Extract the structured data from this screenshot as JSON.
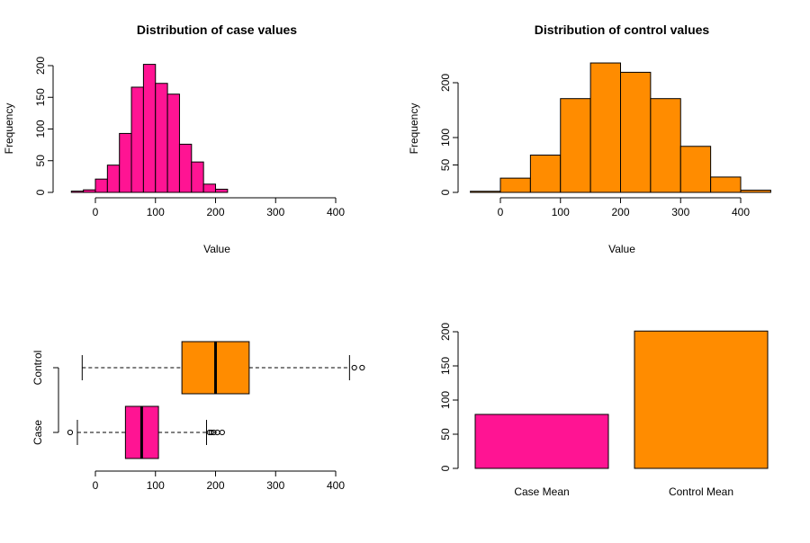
{
  "chart_data": [
    {
      "type": "bar",
      "subtype": "histogram",
      "title": "Distribution of case values",
      "xlabel": "Value",
      "ylabel": "Frequency",
      "bin_edges": [
        -40,
        -20,
        0,
        20,
        40,
        60,
        80,
        100,
        120,
        140,
        160,
        180,
        200,
        220
      ],
      "values": [
        2,
        4,
        21,
        43,
        93,
        166,
        202,
        172,
        155,
        76,
        48,
        13,
        5,
        2
      ],
      "xticks": [
        0,
        100,
        200,
        300,
        400
      ],
      "yticks": [
        0,
        50,
        100,
        150,
        200
      ],
      "xlim": [
        -60,
        400
      ],
      "ylim": [
        0,
        202
      ],
      "color": "#FF1493"
    },
    {
      "type": "bar",
      "subtype": "histogram",
      "title": "Distribution of control values",
      "xlabel": "Value",
      "ylabel": "Frequency",
      "bin_edges": [
        -50,
        0,
        50,
        100,
        150,
        200,
        250,
        300,
        350,
        400,
        450
      ],
      "values": [
        2,
        26,
        68,
        171,
        236,
        219,
        171,
        84,
        28,
        4
      ],
      "xticks": [
        0,
        100,
        200,
        300,
        400
      ],
      "yticks": [
        0,
        50,
        100,
        200
      ],
      "xlim": [
        -50,
        450
      ],
      "ylim": [
        0,
        236
      ],
      "color": "#FF8C00"
    },
    {
      "type": "boxplot",
      "orientation": "horizontal",
      "categories": [
        "Case",
        "Control"
      ],
      "boxes": [
        {
          "name": "Case",
          "whisker_low": -30,
          "q1": 50,
          "median": 77,
          "q3": 105,
          "whisker_high": 185,
          "outliers": [
            -42,
            190,
            193,
            197,
            203,
            211
          ],
          "color": "#FF1493"
        },
        {
          "name": "Control",
          "whisker_low": -22,
          "q1": 144,
          "median": 200,
          "q3": 256,
          "whisker_high": 423,
          "outliers": [
            431,
            444
          ],
          "color": "#FF8C00"
        }
      ],
      "xticks": [
        0,
        100,
        200,
        300,
        400
      ],
      "xlim": [
        -60,
        460
      ]
    },
    {
      "type": "bar",
      "categories": [
        "Case Mean",
        "Control Mean"
      ],
      "values": [
        79,
        201
      ],
      "colors": [
        "#FF1493",
        "#FF8C00"
      ],
      "yticks": [
        0,
        50,
        100,
        150,
        200
      ],
      "ylim": [
        0,
        201
      ]
    }
  ]
}
